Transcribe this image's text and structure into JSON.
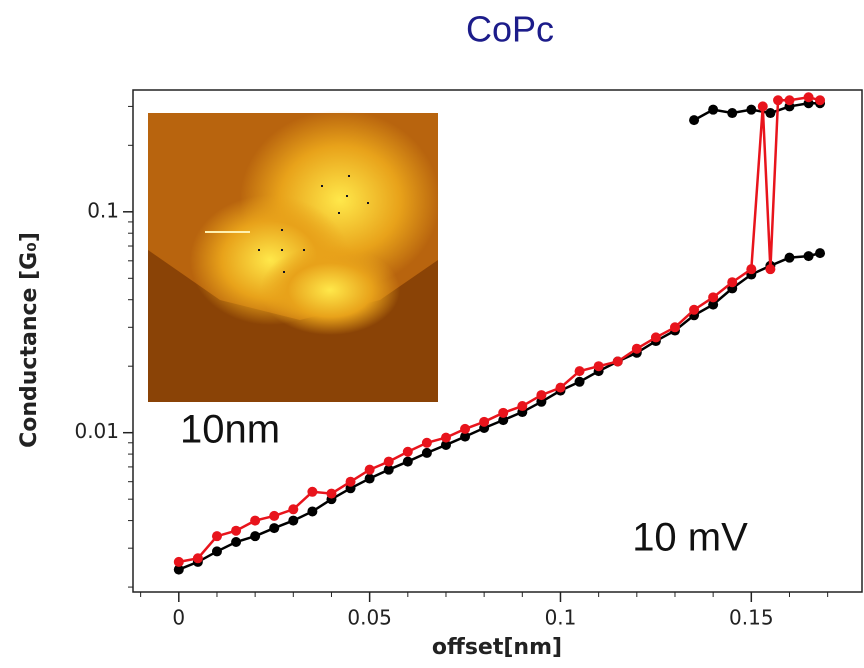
{
  "chart_data": {
    "type": "line",
    "title": "CoPc",
    "x_label": "offset[nm]",
    "y_label": "Conductance [G₀]",
    "annotations": [
      "10nm",
      "10 mV"
    ],
    "log_y": true,
    "xlim": [
      -0.012,
      0.179
    ],
    "ylim": [
      0.0019,
      0.356
    ],
    "xticks": [
      0,
      0.05,
      0.1,
      0.15
    ],
    "xticks_minor": [
      -0.01,
      0.01,
      0.02,
      0.03,
      0.04,
      0.06,
      0.07,
      0.08,
      0.09,
      0.11,
      0.12,
      0.13,
      0.14,
      0.16,
      0.17
    ],
    "yticks": [
      0.01,
      0.1
    ],
    "yticks_minor": [
      0.002,
      0.003,
      0.004,
      0.005,
      0.006,
      0.007,
      0.008,
      0.009,
      0.02,
      0.03,
      0.04,
      0.05,
      0.06,
      0.07,
      0.08,
      0.09,
      0.2,
      0.3
    ],
    "series": [
      {
        "color": "#000000",
        "x": [
          0,
          0.005,
          0.01,
          0.015,
          0.02,
          0.025,
          0.03,
          0.035,
          0.04,
          0.045,
          0.05,
          0.055,
          0.06,
          0.065,
          0.07,
          0.075,
          0.08,
          0.085,
          0.09,
          0.095,
          0.1,
          0.105,
          0.11,
          0.115,
          0.12,
          0.125,
          0.13,
          0.135,
          0.14,
          0.145,
          0.15,
          0.155,
          0.16,
          0.165,
          0.168,
          null,
          0.135,
          0.14,
          0.145,
          0.15,
          0.155,
          0.16,
          0.165,
          0.168
        ],
        "values": [
          0.0024,
          0.0026,
          0.0029,
          0.0032,
          0.0034,
          0.0037,
          0.004,
          0.0044,
          0.005,
          0.0056,
          0.0062,
          0.0068,
          0.0074,
          0.0081,
          0.0088,
          0.0096,
          0.0105,
          0.0114,
          0.0124,
          0.0138,
          0.0155,
          0.017,
          0.019,
          0.021,
          0.023,
          0.026,
          0.029,
          0.034,
          0.038,
          0.045,
          0.052,
          0.057,
          0.062,
          0.063,
          0.065,
          null,
          0.26,
          0.29,
          0.28,
          0.29,
          0.28,
          0.3,
          0.31,
          0.31
        ]
      },
      {
        "color": "#e8141c",
        "x": [
          0,
          0.005,
          0.01,
          0.015,
          0.02,
          0.025,
          0.03,
          0.035,
          0.04,
          0.045,
          0.05,
          0.055,
          0.06,
          0.065,
          0.07,
          0.075,
          0.08,
          0.085,
          0.09,
          0.095,
          0.1,
          0.105,
          0.11,
          0.115,
          0.12,
          0.125,
          0.13,
          0.135,
          0.14,
          0.145,
          0.15,
          0.153,
          0.155,
          0.157,
          0.16,
          0.165,
          0.168
        ],
        "values": [
          0.0026,
          0.0027,
          0.0034,
          0.0036,
          0.004,
          0.0042,
          0.0045,
          0.0054,
          0.0053,
          0.006,
          0.0068,
          0.0074,
          0.0082,
          0.009,
          0.0095,
          0.0104,
          0.0112,
          0.0123,
          0.0132,
          0.0148,
          0.016,
          0.019,
          0.02,
          0.021,
          0.024,
          0.027,
          0.03,
          0.036,
          0.041,
          0.048,
          0.055,
          0.3,
          0.055,
          0.32,
          0.32,
          0.33,
          0.32
        ]
      }
    ]
  }
}
